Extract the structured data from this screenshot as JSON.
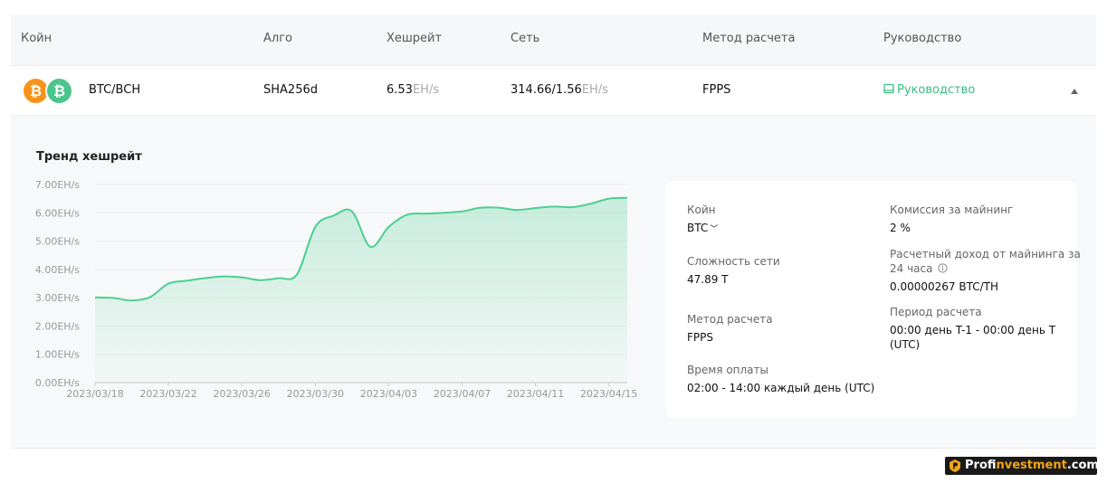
{
  "header": {
    "coin": "Койн",
    "algo": "Алго",
    "hashrate": "Хешрейт",
    "network": "Сеть",
    "method": "Метод расчета",
    "guide": "Руководство"
  },
  "row": {
    "coin_pair": "BTC/BCH",
    "coin_icons": [
      "bitcoin-icon",
      "bitcoin-cash-icon"
    ],
    "algo": "SHA256d",
    "hashrate_value": "6.53",
    "hashrate_unit": "EH/s",
    "network_value": "314.66/1.56",
    "network_unit": "EH/s",
    "method": "FPPS",
    "guide_label": "Руководство"
  },
  "chart_data": {
    "type": "area",
    "title": "Тренд хешрейт",
    "xlabel": "",
    "ylabel": "",
    "ylim": [
      0,
      7
    ],
    "y_ticks": [
      "0.00EH/s",
      "1.00EH/s",
      "2.00EH/s",
      "3.00EH/s",
      "4.00EH/s",
      "5.00EH/s",
      "6.00EH/s",
      "7.00EH/s"
    ],
    "x_ticks": [
      "2023/03/18",
      "2023/03/22",
      "2023/03/26",
      "2023/03/30",
      "2023/04/03",
      "2023/04/07",
      "2023/04/11",
      "2023/04/15"
    ],
    "x": [
      "2023/03/18",
      "2023/03/19",
      "2023/03/20",
      "2023/03/21",
      "2023/03/22",
      "2023/03/23",
      "2023/03/24",
      "2023/03/25",
      "2023/03/26",
      "2023/03/27",
      "2023/03/28",
      "2023/03/29",
      "2023/03/30",
      "2023/03/31",
      "2023/04/01",
      "2023/04/02",
      "2023/04/03",
      "2023/04/04",
      "2023/04/05",
      "2023/04/06",
      "2023/04/07",
      "2023/04/08",
      "2023/04/09",
      "2023/04/10",
      "2023/04/11",
      "2023/04/12",
      "2023/04/13",
      "2023/04/14",
      "2023/04/15",
      "2023/04/16"
    ],
    "values": [
      3.01,
      2.99,
      2.9,
      3.02,
      3.5,
      3.6,
      3.69,
      3.75,
      3.72,
      3.62,
      3.69,
      3.82,
      5.5,
      5.9,
      6.05,
      4.8,
      5.5,
      5.93,
      5.97,
      6.0,
      6.05,
      6.18,
      6.18,
      6.1,
      6.17,
      6.22,
      6.2,
      6.32,
      6.5,
      6.53
    ],
    "color": "#4ccf92",
    "grid": true,
    "legend": "none"
  },
  "info": {
    "coin_label": "Койн",
    "coin_value": "BTC",
    "difficulty_label": "Сложность сети",
    "difficulty_value": "47.89 T",
    "method_label": "Метод расчета",
    "method_value": "FPPS",
    "payout_time_label": "Время оплаты",
    "payout_time_value": "02:00 - 14:00 каждый день (UTC)",
    "fee_label": "Комиссия за майнинг",
    "fee_value": "2 %",
    "income_label_line1": "Расчетный доход от майнинга за",
    "income_label_line2": "24 часа",
    "income_value": "0.00000267 BTC/TH",
    "period_label": "Период расчета",
    "period_value_line1": "00:00 день T-1 - 00:00 день T",
    "period_value_line2": "(UTC)"
  },
  "watermark": {
    "part1": "Prof",
    "part2": "investment",
    "part3": ".com"
  },
  "colors": {
    "accent": "#3dbb83",
    "btc": "#f7931a",
    "bch": "#4cc58b"
  }
}
